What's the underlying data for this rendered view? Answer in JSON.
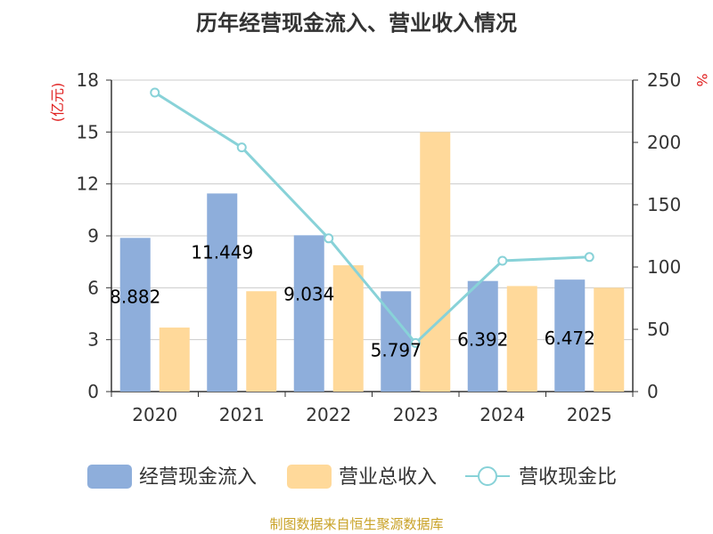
{
  "chart_data": {
    "type": "bar",
    "title": "历年经营现金流入、营业收入情况",
    "categories": [
      "2020",
      "2021",
      "2022",
      "2023",
      "2024",
      "2025"
    ],
    "series": [
      {
        "name": "经营现金流入",
        "kind": "bar",
        "axis": "left",
        "color": "#8eaedb",
        "values": [
          8.882,
          11.449,
          9.034,
          5.797,
          6.392,
          6.472
        ],
        "labels": [
          "8.882",
          "11.449",
          "9.034",
          "5.797",
          "6.392",
          "6.472"
        ]
      },
      {
        "name": "营业总收入",
        "kind": "bar",
        "axis": "left",
        "color": "#ffd99a",
        "values": [
          3.7,
          5.8,
          7.3,
          15.0,
          6.1,
          6.0
        ]
      },
      {
        "name": "营收现金比",
        "kind": "line",
        "axis": "right",
        "color": "#88d2d8",
        "values": [
          240,
          196,
          123,
          39,
          105,
          108
        ]
      }
    ],
    "y_left": {
      "label": "(亿元)",
      "min": 0,
      "max": 18,
      "ticks": [
        "0",
        "3",
        "6",
        "9",
        "12",
        "15",
        "18"
      ]
    },
    "y_right": {
      "label": "%",
      "min": 0,
      "max": 250,
      "ticks": [
        "0",
        "50",
        "100",
        "150",
        "200",
        "250"
      ]
    },
    "legend_position": "bottom",
    "grid": true
  },
  "source": "制图数据来自恒生聚源数据库"
}
